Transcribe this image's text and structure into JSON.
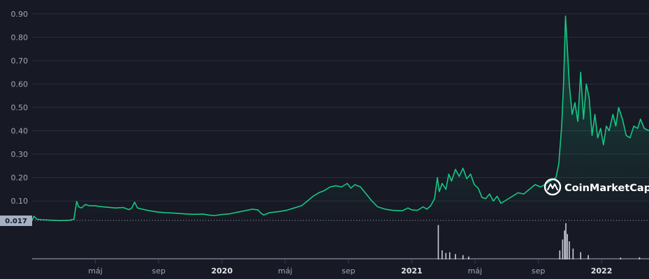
{
  "chart_data": {
    "type": "area",
    "y_ticks": [
      "0.90",
      "0.80",
      "0.70",
      "0.60",
      "0.50",
      "0.40",
      "0.30",
      "0.20",
      "0.10"
    ],
    "x_ticks": [
      {
        "label": "máj",
        "t": 2019.333,
        "bold": false
      },
      {
        "label": "sep",
        "t": 2019.667,
        "bold": false
      },
      {
        "label": "2020",
        "t": 2020.0,
        "bold": true
      },
      {
        "label": "máj",
        "t": 2020.333,
        "bold": false
      },
      {
        "label": "sep",
        "t": 2020.667,
        "bold": false
      },
      {
        "label": "2021",
        "t": 2021.0,
        "bold": true
      },
      {
        "label": "máj",
        "t": 2021.333,
        "bold": false
      },
      {
        "label": "sep",
        "t": 2021.667,
        "bold": false
      },
      {
        "label": "2022",
        "t": 2022.0,
        "bold": true
      }
    ],
    "xlim": [
      2019.0,
      2022.25
    ],
    "ylim": [
      0.017,
      0.91
    ],
    "current_price_label": "0.017",
    "watermark": "CoinMarketCap",
    "line_color": "#16c784",
    "grid": true,
    "price_series": [
      [
        2019.0,
        0.018
      ],
      [
        2019.01,
        0.035
      ],
      [
        2019.025,
        0.022
      ],
      [
        2019.05,
        0.02
      ],
      [
        2019.1,
        0.018
      ],
      [
        2019.15,
        0.016
      ],
      [
        2019.2,
        0.018
      ],
      [
        2019.22,
        0.022
      ],
      [
        2019.235,
        0.098
      ],
      [
        2019.245,
        0.075
      ],
      [
        2019.26,
        0.07
      ],
      [
        2019.28,
        0.085
      ],
      [
        2019.3,
        0.08
      ],
      [
        2019.33,
        0.08
      ],
      [
        2019.36,
        0.076
      ],
      [
        2019.4,
        0.073
      ],
      [
        2019.44,
        0.07
      ],
      [
        2019.48,
        0.072
      ],
      [
        2019.51,
        0.063
      ],
      [
        2019.525,
        0.07
      ],
      [
        2019.54,
        0.095
      ],
      [
        2019.555,
        0.07
      ],
      [
        2019.58,
        0.065
      ],
      [
        2019.62,
        0.058
      ],
      [
        2019.66,
        0.053
      ],
      [
        2019.7,
        0.05
      ],
      [
        2019.75,
        0.048
      ],
      [
        2019.8,
        0.045
      ],
      [
        2019.85,
        0.043
      ],
      [
        2019.9,
        0.044
      ],
      [
        2019.93,
        0.04
      ],
      [
        2019.96,
        0.038
      ],
      [
        2020.0,
        0.042
      ],
      [
        2020.04,
        0.045
      ],
      [
        2020.08,
        0.052
      ],
      [
        2020.12,
        0.058
      ],
      [
        2020.16,
        0.065
      ],
      [
        2020.19,
        0.062
      ],
      [
        2020.205,
        0.048
      ],
      [
        2020.22,
        0.04
      ],
      [
        2020.25,
        0.05
      ],
      [
        2020.3,
        0.055
      ],
      [
        2020.34,
        0.06
      ],
      [
        2020.38,
        0.07
      ],
      [
        2020.42,
        0.08
      ],
      [
        2020.45,
        0.1
      ],
      [
        2020.48,
        0.12
      ],
      [
        2020.51,
        0.135
      ],
      [
        2020.54,
        0.145
      ],
      [
        2020.57,
        0.16
      ],
      [
        2020.6,
        0.165
      ],
      [
        2020.63,
        0.16
      ],
      [
        2020.66,
        0.175
      ],
      [
        2020.68,
        0.155
      ],
      [
        2020.7,
        0.17
      ],
      [
        2020.73,
        0.16
      ],
      [
        2020.76,
        0.13
      ],
      [
        2020.79,
        0.1
      ],
      [
        2020.82,
        0.075
      ],
      [
        2020.86,
        0.065
      ],
      [
        2020.9,
        0.06
      ],
      [
        2020.95,
        0.058
      ],
      [
        2020.98,
        0.07
      ],
      [
        2021.0,
        0.062
      ],
      [
        2021.03,
        0.06
      ],
      [
        2021.06,
        0.075
      ],
      [
        2021.08,
        0.065
      ],
      [
        2021.1,
        0.08
      ],
      [
        2021.12,
        0.11
      ],
      [
        2021.135,
        0.2
      ],
      [
        2021.145,
        0.14
      ],
      [
        2021.16,
        0.175
      ],
      [
        2021.18,
        0.15
      ],
      [
        2021.195,
        0.215
      ],
      [
        2021.21,
        0.185
      ],
      [
        2021.23,
        0.235
      ],
      [
        2021.25,
        0.205
      ],
      [
        2021.27,
        0.24
      ],
      [
        2021.29,
        0.195
      ],
      [
        2021.31,
        0.215
      ],
      [
        2021.33,
        0.17
      ],
      [
        2021.35,
        0.155
      ],
      [
        2021.37,
        0.115
      ],
      [
        2021.39,
        0.11
      ],
      [
        2021.41,
        0.13
      ],
      [
        2021.43,
        0.1
      ],
      [
        2021.45,
        0.12
      ],
      [
        2021.47,
        0.09
      ],
      [
        2021.5,
        0.105
      ],
      [
        2021.53,
        0.12
      ],
      [
        2021.56,
        0.135
      ],
      [
        2021.59,
        0.13
      ],
      [
        2021.62,
        0.15
      ],
      [
        2021.65,
        0.17
      ],
      [
        2021.68,
        0.16
      ],
      [
        2021.71,
        0.175
      ],
      [
        2021.74,
        0.19
      ],
      [
        2021.76,
        0.2
      ],
      [
        2021.775,
        0.26
      ],
      [
        2021.79,
        0.42
      ],
      [
        2021.8,
        0.6
      ],
      [
        2021.81,
        0.89
      ],
      [
        2021.82,
        0.75
      ],
      [
        2021.83,
        0.6
      ],
      [
        2021.845,
        0.47
      ],
      [
        2021.86,
        0.52
      ],
      [
        2021.875,
        0.44
      ],
      [
        2021.89,
        0.65
      ],
      [
        2021.905,
        0.45
      ],
      [
        2021.92,
        0.6
      ],
      [
        2021.935,
        0.54
      ],
      [
        2021.95,
        0.38
      ],
      [
        2021.965,
        0.47
      ],
      [
        2021.98,
        0.37
      ],
      [
        2021.995,
        0.41
      ],
      [
        2022.01,
        0.34
      ],
      [
        2022.025,
        0.42
      ],
      [
        2022.04,
        0.4
      ],
      [
        2022.06,
        0.47
      ],
      [
        2022.075,
        0.42
      ],
      [
        2022.09,
        0.5
      ],
      [
        2022.11,
        0.45
      ],
      [
        2022.13,
        0.38
      ],
      [
        2022.15,
        0.37
      ],
      [
        2022.17,
        0.42
      ],
      [
        2022.19,
        0.41
      ],
      [
        2022.205,
        0.45
      ],
      [
        2022.225,
        0.41
      ],
      [
        2022.25,
        0.4
      ]
    ],
    "volume_spikes": [
      [
        2021.14,
        0.95
      ],
      [
        2021.16,
        0.25
      ],
      [
        2021.18,
        0.18
      ],
      [
        2021.2,
        0.2
      ],
      [
        2021.23,
        0.15
      ],
      [
        2021.27,
        0.12
      ],
      [
        2021.3,
        0.08
      ],
      [
        2021.78,
        0.25
      ],
      [
        2021.795,
        0.55
      ],
      [
        2021.805,
        0.8
      ],
      [
        2021.812,
        1.0
      ],
      [
        2021.82,
        0.7
      ],
      [
        2021.83,
        0.5
      ],
      [
        2021.85,
        0.3
      ],
      [
        2021.89,
        0.2
      ],
      [
        2021.93,
        0.12
      ],
      [
        2022.1,
        0.05
      ],
      [
        2022.2,
        0.06
      ]
    ]
  }
}
